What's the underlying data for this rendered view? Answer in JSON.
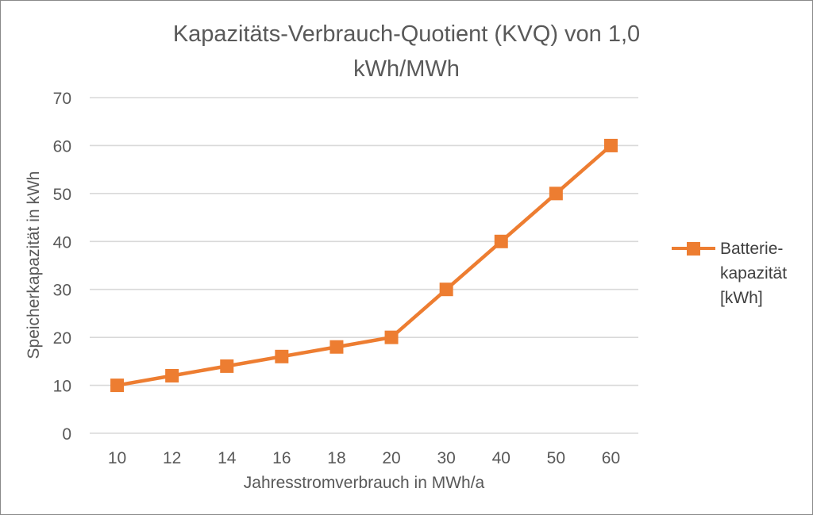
{
  "chart": {
    "title_lines": [
      "Kapazitäts-Verbrauch-Quotient (KVQ) von 1,0",
      "kWh/MWh"
    ],
    "legend_lines": [
      "Batterie-",
      "kapazität",
      "[kWh]"
    ],
    "colors": {
      "series": "#ED7D31",
      "gridline": "#D9D9D9",
      "axis_text": "#595959",
      "title_text": "#595959",
      "legend_text": "#3F3F3F",
      "frame_border": "#898989",
      "background": "#FFFFFF"
    }
  },
  "chart_data": {
    "type": "line",
    "title": "Kapazitäts-Verbrauch-Quotient (KVQ) von 1,0 kWh/MWh",
    "categories": [
      "10",
      "12",
      "14",
      "16",
      "18",
      "20",
      "30",
      "40",
      "50",
      "60"
    ],
    "series": [
      {
        "name": "Batterie-kapazität [kWh]",
        "values": [
          10,
          12,
          14,
          16,
          18,
          20,
          30,
          40,
          50,
          60
        ],
        "color": "#ED7D31",
        "marker": "square"
      }
    ],
    "xlabel": "Jahresstromverbrauch in MWh/a",
    "ylabel": "Speicherkapazität in kWh",
    "ylim": [
      0,
      70
    ],
    "yticks": [
      0,
      10,
      20,
      30,
      40,
      50,
      60,
      70
    ],
    "grid": true,
    "legend_position": "right",
    "x_axis_type": "categorical"
  }
}
